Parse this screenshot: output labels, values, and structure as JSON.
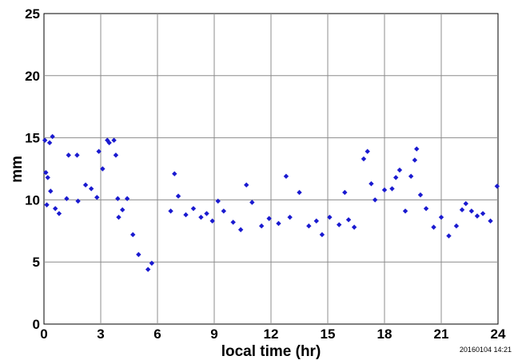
{
  "chart_data": {
    "type": "scatter",
    "title": "",
    "xlabel": "local time (hr)",
    "ylabel": "mm",
    "xlim": [
      0,
      24
    ],
    "ylim": [
      0,
      25
    ],
    "xticks": [
      "0",
      "3",
      "6",
      "9",
      "12",
      "15",
      "18",
      "21",
      "24"
    ],
    "yticks": [
      "0",
      "5",
      "10",
      "15",
      "20",
      "25"
    ],
    "grid": true,
    "marker": "diamond",
    "marker_color": "#1a1ad0",
    "timestamp": "20160104 14:21",
    "points": [
      [
        0.05,
        14.8
      ],
      [
        0.1,
        12.2
      ],
      [
        0.2,
        11.8
      ],
      [
        0.3,
        14.6
      ],
      [
        0.45,
        15.1
      ],
      [
        0.35,
        10.7
      ],
      [
        0.15,
        9.6
      ],
      [
        0.6,
        9.3
      ],
      [
        0.8,
        8.9
      ],
      [
        1.2,
        10.1
      ],
      [
        1.3,
        13.6
      ],
      [
        1.75,
        13.6
      ],
      [
        1.8,
        9.9
      ],
      [
        2.2,
        11.2
      ],
      [
        2.5,
        10.9
      ],
      [
        2.8,
        10.2
      ],
      [
        2.9,
        13.9
      ],
      [
        3.1,
        12.5
      ],
      [
        3.35,
        14.8
      ],
      [
        3.45,
        14.6
      ],
      [
        3.7,
        14.8
      ],
      [
        3.8,
        13.6
      ],
      [
        3.9,
        10.1
      ],
      [
        3.95,
        8.6
      ],
      [
        4.15,
        9.2
      ],
      [
        4.4,
        10.1
      ],
      [
        4.7,
        7.2
      ],
      [
        5.0,
        5.6
      ],
      [
        5.5,
        4.4
      ],
      [
        5.7,
        4.9
      ],
      [
        6.7,
        9.1
      ],
      [
        6.9,
        12.1
      ],
      [
        7.1,
        10.3
      ],
      [
        7.5,
        8.8
      ],
      [
        7.9,
        9.3
      ],
      [
        8.3,
        8.6
      ],
      [
        8.6,
        8.9
      ],
      [
        8.9,
        8.3
      ],
      [
        9.2,
        9.9
      ],
      [
        9.5,
        9.1
      ],
      [
        10.0,
        8.2
      ],
      [
        10.4,
        7.6
      ],
      [
        10.7,
        11.2
      ],
      [
        11.0,
        9.8
      ],
      [
        11.5,
        7.9
      ],
      [
        11.9,
        8.5
      ],
      [
        12.4,
        8.1
      ],
      [
        12.8,
        11.9
      ],
      [
        13.0,
        8.6
      ],
      [
        13.5,
        10.6
      ],
      [
        14.0,
        7.9
      ],
      [
        14.4,
        8.3
      ],
      [
        14.7,
        7.2
      ],
      [
        15.1,
        8.6
      ],
      [
        15.6,
        8.0
      ],
      [
        15.9,
        10.6
      ],
      [
        16.1,
        8.4
      ],
      [
        16.4,
        7.8
      ],
      [
        16.9,
        13.3
      ],
      [
        17.1,
        13.9
      ],
      [
        17.3,
        11.3
      ],
      [
        17.5,
        10.0
      ],
      [
        18.0,
        10.8
      ],
      [
        18.4,
        10.9
      ],
      [
        18.6,
        11.8
      ],
      [
        18.8,
        12.4
      ],
      [
        19.1,
        9.1
      ],
      [
        19.4,
        11.9
      ],
      [
        19.6,
        13.2
      ],
      [
        19.7,
        14.1
      ],
      [
        19.9,
        10.4
      ],
      [
        20.2,
        9.3
      ],
      [
        20.6,
        7.8
      ],
      [
        21.0,
        8.6
      ],
      [
        21.4,
        7.1
      ],
      [
        21.8,
        7.9
      ],
      [
        22.1,
        9.2
      ],
      [
        22.3,
        9.7
      ],
      [
        22.6,
        9.1
      ],
      [
        22.9,
        8.7
      ],
      [
        23.2,
        8.9
      ],
      [
        23.6,
        8.3
      ],
      [
        23.95,
        11.1
      ]
    ]
  }
}
